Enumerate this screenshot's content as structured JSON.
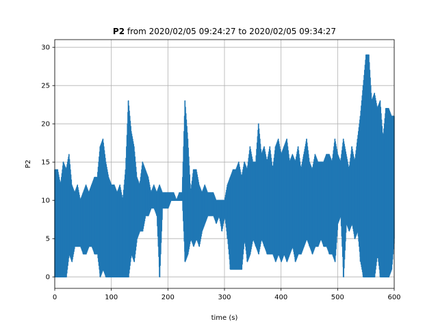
{
  "chart_data": {
    "type": "line",
    "title_bold": "P2",
    "title_rest": " from 2020/02/05 09:24:27 to 2020/02/05 09:34:27",
    "xlabel": "time (s)",
    "ylabel": "P2",
    "xlim": [
      0,
      600
    ],
    "ylim": [
      -1.5,
      31.0
    ],
    "xticks": [
      0,
      100,
      200,
      300,
      400,
      500,
      600
    ],
    "yticks": [
      0,
      5,
      10,
      15,
      20,
      25,
      30
    ],
    "grid": true,
    "legend": "none",
    "color": "#1f77b4",
    "series": [
      {
        "x": [
          0,
          5,
          10,
          15,
          20,
          25,
          30,
          35,
          40,
          45,
          50,
          55,
          60,
          65,
          70,
          75,
          80,
          85,
          90,
          95,
          100,
          105,
          110,
          115,
          120,
          125,
          130,
          135,
          140,
          145,
          150,
          155,
          160,
          165,
          170,
          175,
          180,
          185,
          190,
          195,
          200,
          205,
          210,
          215,
          220,
          225,
          230,
          235,
          240,
          245,
          250,
          255,
          260,
          265,
          270,
          275,
          280,
          285,
          290,
          295,
          300,
          305,
          310,
          315,
          320,
          325,
          330,
          335,
          340,
          345,
          350,
          355,
          360,
          365,
          370,
          375,
          380,
          385,
          390,
          395,
          400,
          405,
          410,
          415,
          420,
          425,
          430,
          435,
          440,
          445,
          450,
          455,
          460,
          465,
          470,
          475,
          480,
          485,
          490,
          495,
          500,
          505,
          510,
          515,
          520,
          525,
          530,
          535,
          540,
          545,
          550,
          555,
          560,
          565,
          570,
          575,
          580,
          585,
          590,
          595,
          600
        ],
        "y_min": [
          0,
          0,
          0,
          0,
          0,
          3,
          2,
          4,
          4,
          4,
          3,
          3,
          4,
          4,
          3,
          3,
          0,
          1,
          0,
          0,
          0,
          0,
          0,
          0,
          0,
          0,
          0,
          3,
          2,
          5,
          6,
          6,
          8,
          8,
          9,
          9,
          8,
          0,
          9,
          9,
          9,
          10,
          10,
          10,
          10,
          10,
          2,
          3,
          5,
          4,
          5,
          4,
          6,
          7,
          8,
          8,
          8,
          7,
          8,
          6,
          8,
          5,
          1,
          1,
          1,
          1,
          1,
          5,
          2,
          3,
          5,
          4,
          3,
          5,
          4,
          3,
          3,
          3,
          2,
          3,
          2,
          3,
          2,
          3,
          4,
          2,
          3,
          3,
          4,
          5,
          4,
          3,
          4,
          4,
          5,
          4,
          4,
          3,
          3,
          2,
          7,
          8,
          0,
          7,
          6,
          7,
          5,
          6,
          2,
          0,
          0,
          0,
          0,
          0,
          3,
          0,
          0,
          0,
          0,
          1,
          5
        ],
        "y_max": [
          14,
          14,
          12,
          15,
          14,
          16,
          12,
          11,
          12,
          10,
          11,
          12,
          11,
          12,
          13,
          13,
          17,
          18,
          15,
          13,
          12,
          12,
          11,
          12,
          10,
          14,
          23,
          19,
          17,
          13,
          12,
          15,
          14,
          13,
          11,
          12,
          11,
          12,
          11,
          11,
          11,
          11,
          11,
          10,
          11,
          11,
          23,
          18,
          11,
          14,
          14,
          12,
          11,
          12,
          11,
          11,
          11,
          10,
          10,
          10,
          10,
          12,
          13,
          14,
          14,
          15,
          13,
          15,
          14,
          17,
          15,
          15,
          20,
          16,
          17,
          15,
          17,
          14,
          17,
          18,
          16,
          17,
          18,
          15,
          16,
          15,
          17,
          14,
          16,
          18,
          15,
          14,
          16,
          15,
          15,
          15,
          16,
          16,
          15,
          18,
          16,
          15,
          18,
          16,
          14,
          17,
          15,
          18,
          21,
          25,
          29,
          29,
          23,
          24,
          22,
          23,
          18,
          22,
          22,
          21,
          21
        ]
      }
    ]
  }
}
